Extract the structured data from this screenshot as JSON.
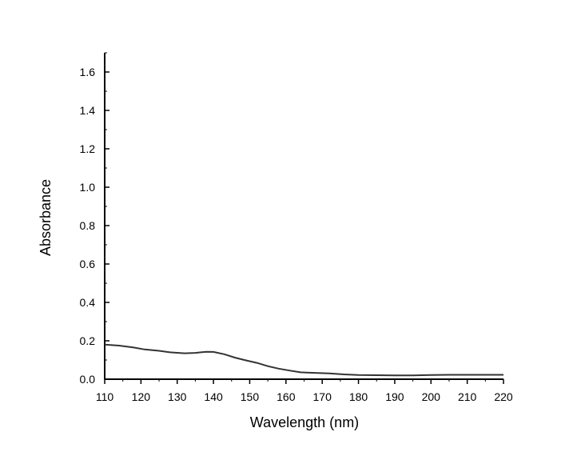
{
  "chart_data": {
    "type": "line",
    "xlabel": "Wavelength (nm)",
    "ylabel": "Absorbance",
    "xlim": [
      110,
      220
    ],
    "ylim": [
      0.0,
      1.7
    ],
    "x_ticks": [
      110,
      120,
      130,
      140,
      150,
      160,
      170,
      180,
      190,
      200,
      210,
      220
    ],
    "x_tick_labels": [
      "110",
      "120",
      "130",
      "140",
      "150",
      "160",
      "170",
      "180",
      "190",
      "200",
      "210",
      "220"
    ],
    "y_ticks": [
      0.0,
      0.2,
      0.4,
      0.6,
      0.8,
      1.0,
      1.2,
      1.4,
      1.6
    ],
    "y_tick_labels": [
      "0.0",
      "0.2",
      "0.4",
      "0.6",
      "0.8",
      "1.0",
      "1.2",
      "1.4",
      "1.6"
    ],
    "grid": false,
    "series": [
      {
        "color": "#333333",
        "x": [
          110,
          114,
          118,
          121,
          125,
          128,
          132,
          135,
          138,
          140,
          143,
          146,
          149,
          152,
          155,
          158,
          161,
          164,
          168,
          172,
          176,
          180,
          185,
          190,
          195,
          200,
          205,
          210,
          215,
          220
        ],
        "y": [
          0.18,
          0.175,
          0.165,
          0.155,
          0.148,
          0.14,
          0.135,
          0.137,
          0.143,
          0.142,
          0.13,
          0.112,
          0.098,
          0.085,
          0.068,
          0.055,
          0.045,
          0.036,
          0.033,
          0.03,
          0.025,
          0.022,
          0.021,
          0.02,
          0.02,
          0.022,
          0.023,
          0.023,
          0.023,
          0.023
        ]
      }
    ]
  }
}
